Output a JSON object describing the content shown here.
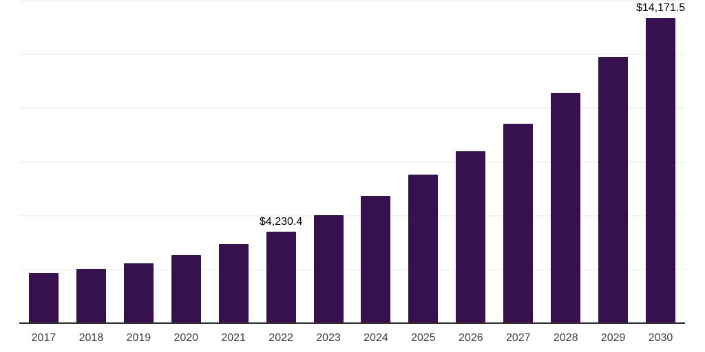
{
  "chart_data": {
    "type": "bar",
    "title": "",
    "xlabel": "",
    "ylabel": "",
    "categories": [
      "2017",
      "2018",
      "2019",
      "2020",
      "2021",
      "2022",
      "2023",
      "2024",
      "2025",
      "2026",
      "2027",
      "2028",
      "2029",
      "2030"
    ],
    "values": [
      2300,
      2500,
      2750,
      3150,
      3660,
      4230.4,
      5000,
      5900,
      6890,
      7970,
      9250,
      10690,
      12350,
      14171.5
    ],
    "data_labels": [
      "",
      "",
      "",
      "",
      "",
      "$4,230.4",
      "",
      "",
      "",
      "",
      "",
      "",
      "",
      "$14,171.5"
    ],
    "labeled_points": [
      {
        "category": "2022",
        "label": "$4,230.4",
        "value": 4230.4
      },
      {
        "category": "2030",
        "label": "$14,171.5",
        "value": 14171.5
      }
    ],
    "ylim": [
      0,
      15000
    ],
    "gridline_step": 2500,
    "grid": "horizontal-light",
    "y_axis_labels_visible": false,
    "legend_position": "none",
    "colors": {
      "bar": "#36114E",
      "axis_line": "#2B2B2B",
      "gridline": "#F2F2F2",
      "tick_label": "#3D3D3D",
      "data_label": "#000000",
      "background": "#FFFFFF"
    }
  }
}
